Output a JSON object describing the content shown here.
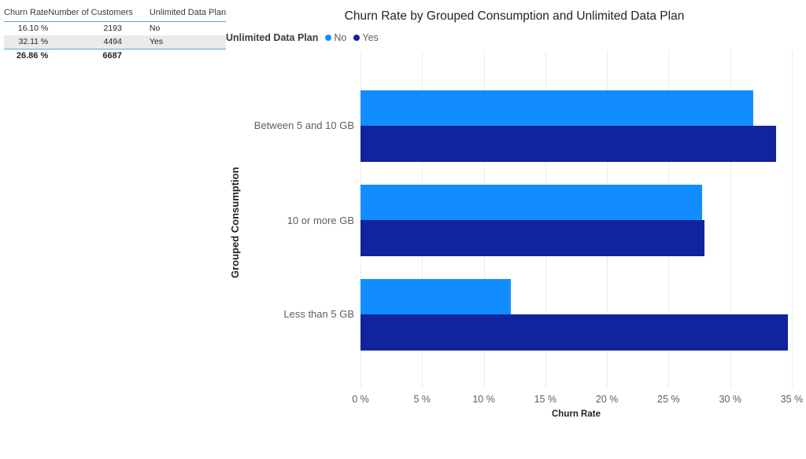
{
  "table": {
    "columns": [
      "Churn Rate",
      "Number of Customers",
      "Unlimited Data Plan"
    ],
    "rows": [
      [
        "16.10 %",
        "2193",
        "No"
      ],
      [
        "32.11 %",
        "4494",
        "Yes"
      ]
    ],
    "total": [
      "26.86 %",
      "6687",
      ""
    ]
  },
  "chart_data": {
    "type": "bar",
    "orientation": "horizontal",
    "title": "Churn Rate by Grouped Consumption and Unlimited Data Plan",
    "legend_title": "Unlimited Data Plan",
    "legend_position": "top-left",
    "categories": [
      "Between 5 and 10 GB",
      "10 or more GB",
      "Less than 5 GB"
    ],
    "series": [
      {
        "name": "No",
        "color": "#118DFF",
        "values": [
          31.9,
          27.7,
          12.2
        ]
      },
      {
        "name": "Yes",
        "color": "#12239E",
        "values": [
          33.7,
          27.9,
          34.7
        ]
      }
    ],
    "xlabel": "Churn Rate",
    "ylabel": "Grouped Consumption",
    "xlim": [
      0,
      35
    ],
    "xticks": [
      "0 %",
      "5 %",
      "10 %",
      "15 %",
      "20 %",
      "25 %",
      "30 %",
      "35 %"
    ],
    "grid": "vertical-dotted"
  },
  "colors": {
    "series_no": "#118DFF",
    "series_yes": "#12239E",
    "text_dark": "#252423",
    "text_gray": "#605E5C",
    "table_alt_row": "#EAEAEA",
    "table_separator": "#66A3D2"
  }
}
